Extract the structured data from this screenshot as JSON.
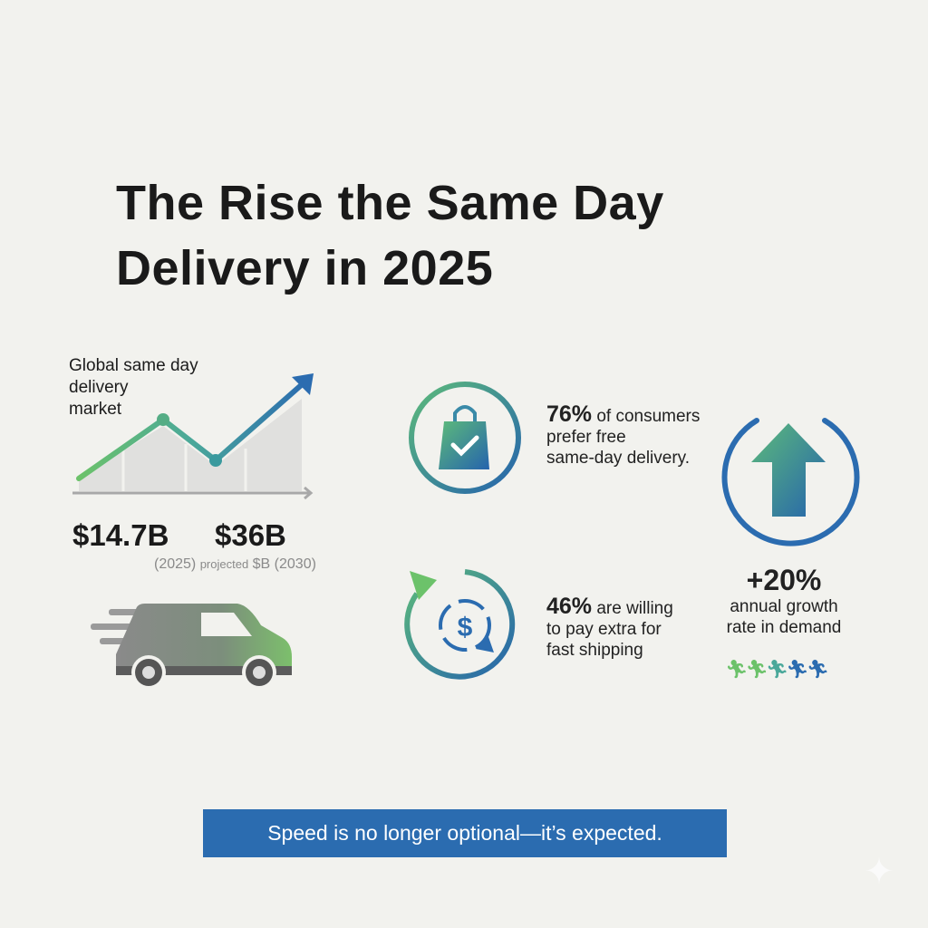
{
  "title": {
    "line1": "The Rise the Same Day",
    "line2": "Delivery in 2025"
  },
  "market": {
    "label_lines": [
      "Global same day",
      "delivery",
      "market"
    ],
    "value_2025": "$14.7B",
    "value_2030": "$36B",
    "caption_2025": "(2025)",
    "caption_projected": "projected",
    "caption_unit": "$B",
    "caption_2030": "(2030)"
  },
  "stats": {
    "consumers": {
      "percent": "76%",
      "text_1": " of consumers",
      "text_2": "prefer free",
      "text_3": "same-day delivery.",
      "icon": "shopping-bag-check-icon"
    },
    "willing": {
      "percent": "46%",
      "text_1": " are willing",
      "text_2": "to pay extra for",
      "text_3": "fast shipping",
      "icon": "dollar-cycle-icon"
    },
    "growth": {
      "percent": "+20%",
      "text_1": "annual growth",
      "text_2": "rate in demand",
      "icon": "up-arrow-icon"
    }
  },
  "banner": "Speed is no longer optional—it’s expected.",
  "colors": {
    "green": "#6cc26a",
    "blue": "#2b6cb0",
    "background": "#f2f2ee"
  }
}
